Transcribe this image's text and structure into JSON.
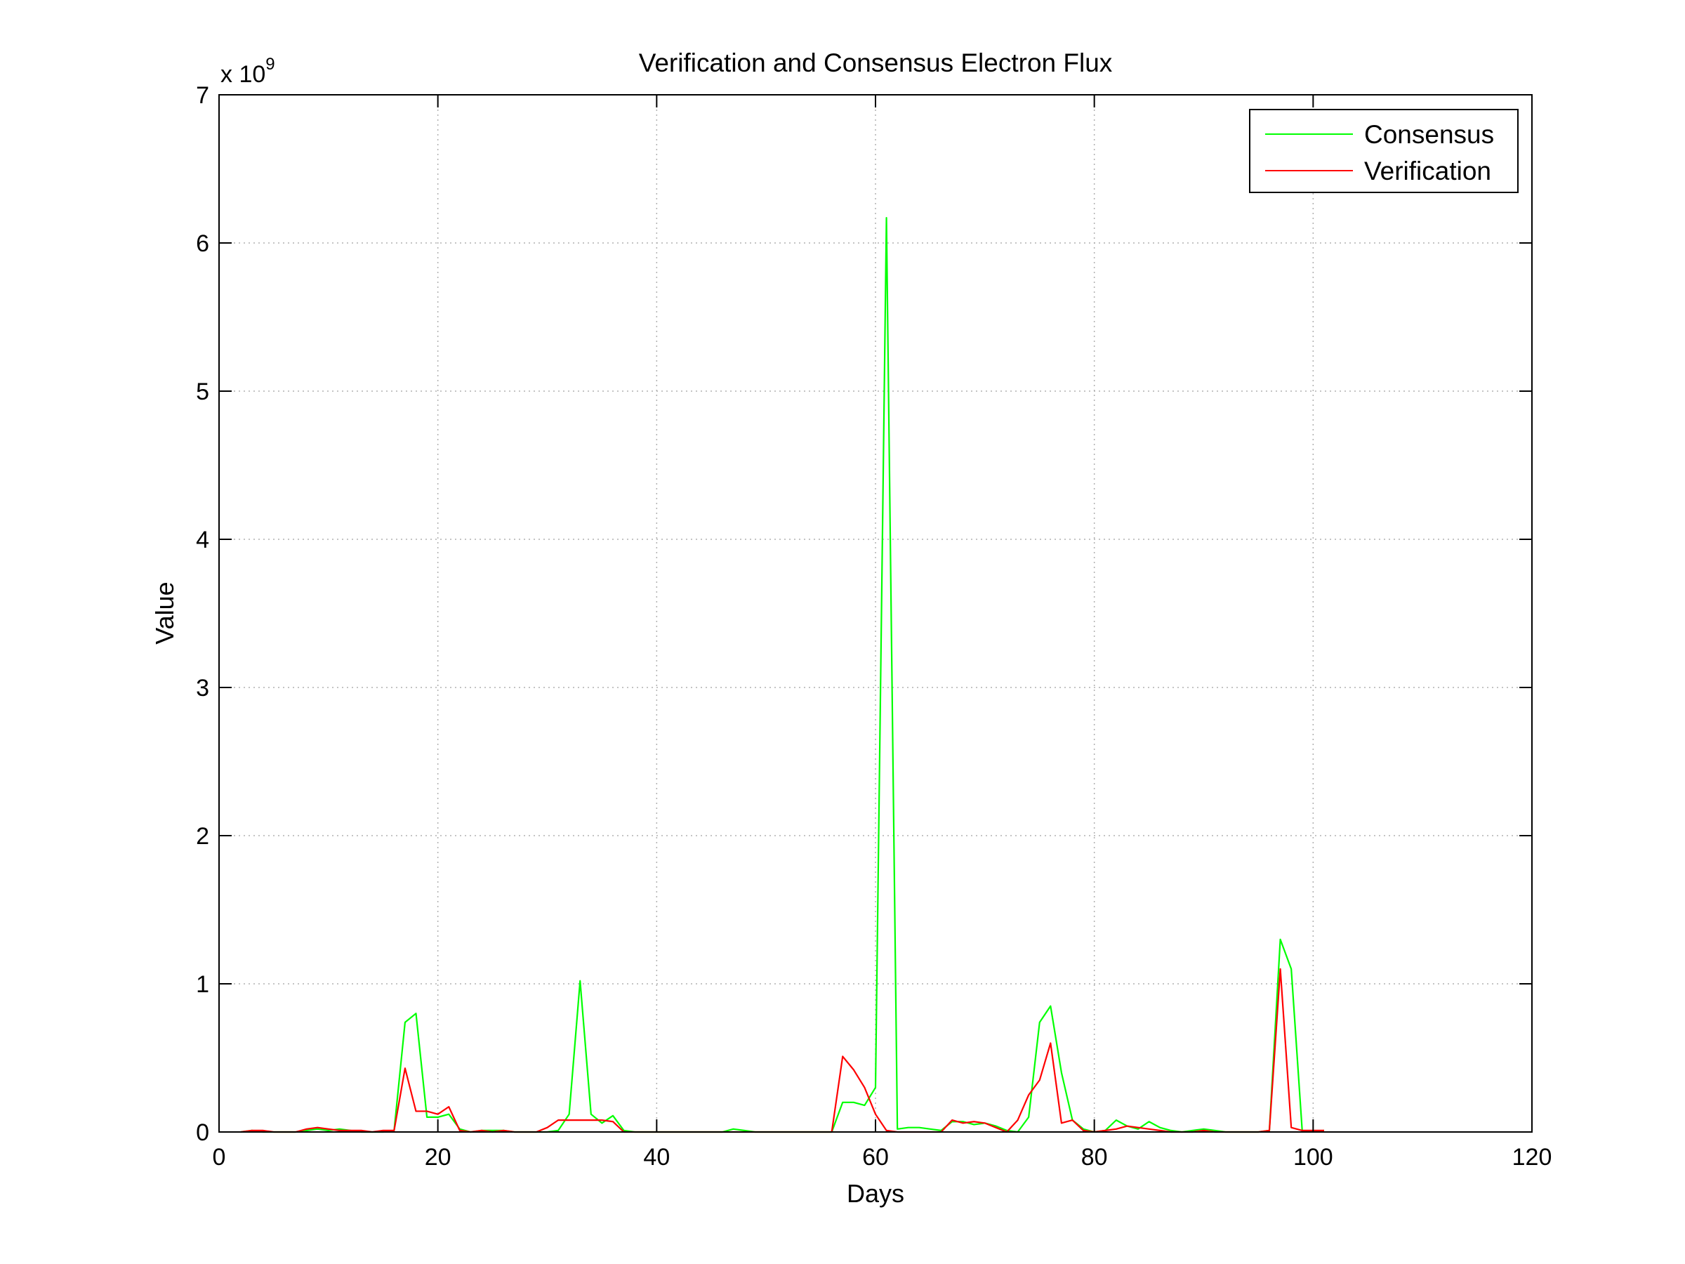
{
  "chart_data": {
    "type": "line",
    "title": "Verification and Consensus  Electron Flux",
    "xlabel": "Days",
    "ylabel": "Value",
    "xlim": [
      0,
      120
    ],
    "ylim": [
      0,
      7
    ],
    "y_multiplier_base": "x 10",
    "y_multiplier_exponent": "9",
    "x_ticks": [
      "0",
      "20",
      "40",
      "60",
      "80",
      "100",
      "120"
    ],
    "y_ticks": [
      "0",
      "1",
      "2",
      "3",
      "4",
      "5",
      "6",
      "7"
    ],
    "grid": true,
    "legend_position": "top-right",
    "series": [
      {
        "name": "Consensus",
        "color": "#00ff00",
        "x": [
          2,
          3,
          4,
          5,
          6,
          7,
          8,
          9,
          10,
          11,
          12,
          13,
          14,
          15,
          16,
          17,
          18,
          19,
          20,
          21,
          22,
          23,
          24,
          25,
          26,
          27,
          28,
          29,
          30,
          31,
          32,
          33,
          34,
          35,
          36,
          37,
          38,
          39,
          40,
          41,
          42,
          43,
          44,
          45,
          46,
          47,
          48,
          49,
          50,
          51,
          52,
          53,
          54,
          55,
          56,
          57,
          58,
          59,
          60,
          61,
          62,
          63,
          64,
          65,
          66,
          67,
          68,
          69,
          70,
          71,
          72,
          73,
          74,
          75,
          76,
          77,
          78,
          79,
          80,
          81,
          82,
          83,
          84,
          85,
          86,
          87,
          88,
          89,
          90,
          91,
          92,
          93,
          94,
          95,
          96,
          97,
          98,
          99,
          100,
          101
        ],
        "y": [
          0,
          0.01,
          0,
          0,
          0,
          0,
          0.01,
          0.02,
          0.01,
          0.02,
          0.01,
          0,
          0,
          0,
          0.01,
          0.74,
          0.8,
          0.1,
          0.1,
          0.12,
          0.02,
          0,
          0.01,
          0.01,
          0.01,
          0,
          0,
          0,
          0,
          0.01,
          0.12,
          1.02,
          0.12,
          0.06,
          0.11,
          0.01,
          0,
          0,
          0,
          0,
          0,
          0,
          0,
          0,
          0,
          0.02,
          0.01,
          0,
          0,
          0,
          0,
          0,
          0,
          0,
          0,
          0.2,
          0.2,
          0.18,
          0.3,
          6.17,
          0.02,
          0.03,
          0.03,
          0.02,
          0.01,
          0.07,
          0.07,
          0.05,
          0.06,
          0.04,
          0.01,
          0,
          0.1,
          0.74,
          0.85,
          0.4,
          0.08,
          0.02,
          0,
          0.01,
          0.08,
          0.04,
          0.02,
          0.07,
          0.03,
          0.01,
          0,
          0.01,
          0.02,
          0.01,
          0,
          0,
          0,
          0,
          0.01,
          1.3,
          1.1,
          0.01,
          0,
          0.01
        ]
      },
      {
        "name": "Verification",
        "color": "#ff0000",
        "x": [
          2,
          3,
          4,
          5,
          6,
          7,
          8,
          9,
          10,
          11,
          12,
          13,
          14,
          15,
          16,
          17,
          18,
          19,
          20,
          21,
          22,
          23,
          24,
          25,
          26,
          27,
          28,
          29,
          30,
          31,
          32,
          33,
          34,
          35,
          36,
          37,
          38,
          39,
          40,
          41,
          42,
          43,
          44,
          45,
          46,
          47,
          48,
          49,
          50,
          51,
          52,
          53,
          54,
          55,
          56,
          57,
          58,
          59,
          60,
          61,
          62,
          63,
          64,
          65,
          66,
          67,
          68,
          69,
          70,
          71,
          72,
          73,
          74,
          75,
          76,
          77,
          78,
          79,
          80,
          81,
          82,
          83,
          84,
          85,
          86,
          87,
          88,
          89,
          90,
          91,
          92,
          93,
          94,
          95,
          96,
          97,
          98,
          99,
          100,
          101
        ],
        "y": [
          0,
          0.01,
          0.01,
          0,
          0,
          0,
          0.02,
          0.03,
          0.02,
          0.01,
          0.01,
          0.01,
          0,
          0.01,
          0.01,
          0.43,
          0.14,
          0.14,
          0.12,
          0.17,
          0.01,
          0,
          0.01,
          0,
          0.01,
          0,
          0,
          0,
          0.03,
          0.08,
          0.08,
          0.08,
          0.08,
          0.08,
          0.07,
          0,
          0,
          0,
          0,
          0,
          0,
          0,
          0,
          0,
          0,
          0,
          0,
          0,
          0,
          0,
          0,
          0,
          0,
          0,
          0,
          0.51,
          0.42,
          0.3,
          0.12,
          0.01,
          0,
          0,
          0,
          0,
          0,
          0.08,
          0.06,
          0.07,
          0.06,
          0.03,
          0,
          0.08,
          0.25,
          0.35,
          0.6,
          0.06,
          0.08,
          0.01,
          0,
          0.01,
          0.02,
          0.04,
          0.03,
          0.02,
          0.01,
          0,
          0,
          0,
          0.01,
          0,
          0,
          0,
          0,
          0,
          0.01,
          1.1,
          0.03,
          0.01,
          0.01,
          0.01
        ]
      }
    ]
  }
}
